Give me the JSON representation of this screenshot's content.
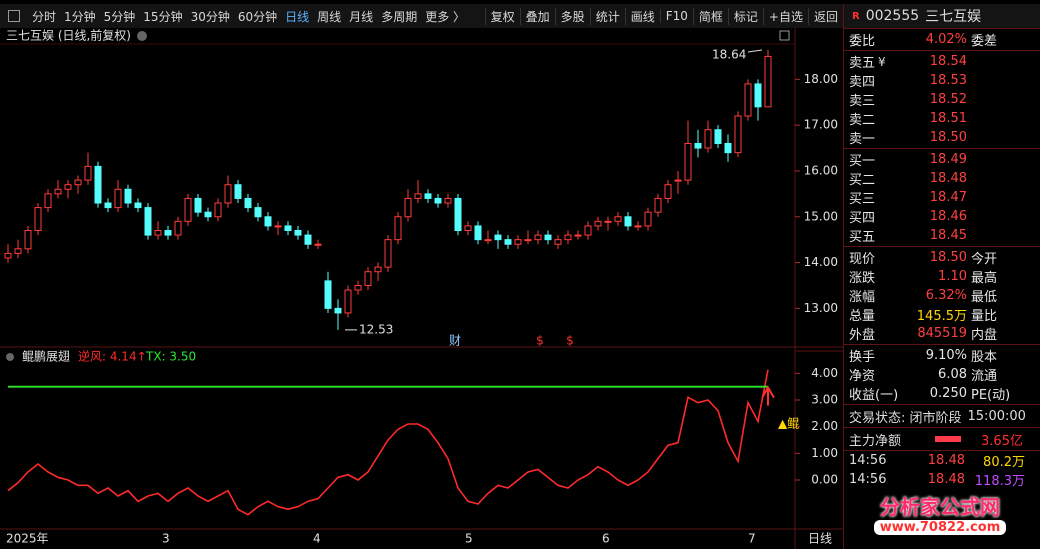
{
  "toolbar": {
    "periods": [
      "分时",
      "1分钟",
      "5分钟",
      "15分钟",
      "30分钟",
      "60分钟",
      "日线",
      "周线",
      "月线",
      "多周期",
      "更多 〉"
    ],
    "selected": 6,
    "tools": [
      "复权",
      "叠加",
      "多股",
      "统计",
      "画线",
      "F10",
      "简框",
      "标记",
      "+自选",
      "返回"
    ]
  },
  "chart_data": [
    {
      "type": "candlestick",
      "title": "三七互娱 (日线,前复权)",
      "up_color": "#ff3c3c",
      "down_color": "#54fcfc",
      "ylim": [
        12.2,
        18.75
      ],
      "yticks": [
        {
          "value": 13,
          "label": "13.00"
        },
        {
          "value": 14,
          "label": "14.00"
        },
        {
          "value": 15,
          "label": "15.00"
        },
        {
          "value": 16,
          "label": "16.00"
        },
        {
          "value": 17,
          "label": "17.00"
        },
        {
          "value": 18,
          "label": "18.00"
        }
      ],
      "x_labels": [
        "2025年",
        "3",
        "4",
        "5",
        "6",
        "7"
      ],
      "period_label": "日线",
      "annotations": [
        18.64,
        12.53
      ],
      "markers": [
        "财",
        "$",
        "$"
      ],
      "ohlc": [
        [
          14.1,
          14.4,
          14.0,
          14.2
        ],
        [
          14.2,
          14.5,
          14.1,
          14.3
        ],
        [
          14.3,
          14.8,
          14.2,
          14.7
        ],
        [
          14.7,
          15.3,
          14.6,
          15.2
        ],
        [
          15.2,
          15.6,
          15.1,
          15.5
        ],
        [
          15.5,
          15.8,
          15.4,
          15.6
        ],
        [
          15.6,
          15.8,
          15.4,
          15.7
        ],
        [
          15.7,
          15.9,
          15.5,
          15.8
        ],
        [
          15.8,
          16.4,
          15.7,
          16.1
        ],
        [
          16.1,
          16.2,
          15.2,
          15.3
        ],
        [
          15.3,
          15.4,
          15.1,
          15.2
        ],
        [
          15.2,
          15.8,
          15.1,
          15.6
        ],
        [
          15.6,
          15.7,
          15.2,
          15.3
        ],
        [
          15.3,
          15.4,
          15.1,
          15.2
        ],
        [
          15.2,
          15.3,
          14.5,
          14.6
        ],
        [
          14.6,
          14.9,
          14.5,
          14.7
        ],
        [
          14.7,
          14.8,
          14.5,
          14.6
        ],
        [
          14.6,
          15.0,
          14.5,
          14.9
        ],
        [
          14.9,
          15.5,
          14.8,
          15.4
        ],
        [
          15.4,
          15.5,
          15.0,
          15.1
        ],
        [
          15.1,
          15.2,
          14.9,
          15.0
        ],
        [
          15.0,
          15.4,
          14.9,
          15.3
        ],
        [
          15.3,
          15.9,
          15.2,
          15.7
        ],
        [
          15.7,
          15.8,
          15.3,
          15.4
        ],
        [
          15.4,
          15.5,
          15.1,
          15.2
        ],
        [
          15.2,
          15.3,
          14.9,
          15.0
        ],
        [
          15.0,
          15.1,
          14.7,
          14.8
        ],
        [
          14.8,
          14.9,
          14.6,
          14.8
        ],
        [
          14.8,
          14.9,
          14.6,
          14.7
        ],
        [
          14.7,
          14.8,
          14.5,
          14.6
        ],
        [
          14.6,
          14.7,
          14.3,
          14.4
        ],
        [
          14.4,
          14.5,
          14.3,
          14.4
        ],
        [
          13.6,
          13.8,
          12.9,
          13.0
        ],
        [
          13.0,
          13.2,
          12.53,
          12.9
        ],
        [
          12.9,
          13.5,
          12.8,
          13.4
        ],
        [
          13.4,
          13.6,
          13.3,
          13.5
        ],
        [
          13.5,
          13.9,
          13.4,
          13.8
        ],
        [
          13.8,
          14.0,
          13.6,
          13.9
        ],
        [
          13.9,
          14.6,
          13.8,
          14.5
        ],
        [
          14.5,
          15.1,
          14.4,
          15.0
        ],
        [
          15.0,
          15.6,
          14.9,
          15.4
        ],
        [
          15.4,
          15.8,
          15.3,
          15.5
        ],
        [
          15.5,
          15.6,
          15.3,
          15.4
        ],
        [
          15.4,
          15.5,
          15.2,
          15.3
        ],
        [
          15.3,
          15.5,
          15.2,
          15.4
        ],
        [
          15.4,
          15.5,
          14.6,
          14.7
        ],
        [
          14.7,
          14.9,
          14.6,
          14.8
        ],
        [
          14.8,
          14.9,
          14.4,
          14.5
        ],
        [
          14.5,
          14.7,
          14.4,
          14.5
        ],
        [
          14.6,
          14.7,
          14.3,
          14.5
        ],
        [
          14.5,
          14.6,
          14.3,
          14.4
        ],
        [
          14.4,
          14.6,
          14.3,
          14.5
        ],
        [
          14.5,
          14.7,
          14.4,
          14.5
        ],
        [
          14.5,
          14.7,
          14.4,
          14.6
        ],
        [
          14.6,
          14.7,
          14.4,
          14.5
        ],
        [
          14.4,
          14.6,
          14.3,
          14.5
        ],
        [
          14.5,
          14.7,
          14.4,
          14.6
        ],
        [
          14.6,
          14.7,
          14.5,
          14.6
        ],
        [
          14.6,
          14.9,
          14.5,
          14.8
        ],
        [
          14.8,
          15.0,
          14.7,
          14.9
        ],
        [
          14.9,
          15.0,
          14.7,
          14.9
        ],
        [
          14.9,
          15.1,
          14.8,
          15.0
        ],
        [
          15.0,
          15.1,
          14.7,
          14.8
        ],
        [
          14.8,
          14.9,
          14.7,
          14.8
        ],
        [
          14.8,
          15.2,
          14.7,
          15.1
        ],
        [
          15.1,
          15.5,
          15.0,
          15.4
        ],
        [
          15.4,
          15.8,
          15.3,
          15.7
        ],
        [
          15.8,
          16.0,
          15.5,
          15.8
        ],
        [
          15.8,
          17.1,
          15.7,
          16.6
        ],
        [
          16.6,
          16.9,
          16.3,
          16.5
        ],
        [
          16.5,
          17.1,
          16.4,
          16.9
        ],
        [
          16.9,
          17.0,
          16.5,
          16.6
        ],
        [
          16.6,
          16.8,
          16.2,
          16.4
        ],
        [
          16.4,
          17.3,
          16.3,
          17.2
        ],
        [
          17.2,
          18.0,
          17.1,
          17.9
        ],
        [
          17.9,
          18.0,
          17.1,
          17.4
        ],
        [
          17.4,
          18.64,
          17.4,
          18.5
        ]
      ]
    },
    {
      "type": "line",
      "title": "鲲鹏展翅",
      "signal": "▲鲲",
      "ylim": [
        -1.8,
        4.8
      ],
      "yticks": [
        {
          "value": 0,
          "label": "0.00"
        },
        {
          "value": 1,
          "label": "1.00"
        },
        {
          "value": 2,
          "label": "2.00"
        },
        {
          "value": 3,
          "label": "3.00"
        },
        {
          "value": 4,
          "label": "4.00"
        }
      ],
      "series": [
        {
          "name": "逆风: 4.14↑",
          "color": "#ff2a2a",
          "values": [
            -0.4,
            -0.1,
            0.3,
            0.6,
            0.3,
            0.1,
            0.0,
            -0.2,
            -0.2,
            -0.5,
            -0.3,
            -0.6,
            -0.4,
            -0.8,
            -0.6,
            -0.5,
            -0.8,
            -0.5,
            -0.3,
            -0.6,
            -0.8,
            -0.6,
            -0.4,
            -1.1,
            -1.3,
            -1.0,
            -0.8,
            -1.0,
            -1.1,
            -1.0,
            -0.8,
            -0.7,
            -0.3,
            0.1,
            0.2,
            0.0,
            0.3,
            0.9,
            1.5,
            1.9,
            2.1,
            2.1,
            1.9,
            1.4,
            0.8,
            -0.3,
            -0.8,
            -0.9,
            -0.5,
            -0.2,
            -0.3,
            0.0,
            0.3,
            0.4,
            0.1,
            -0.2,
            -0.3,
            0.0,
            0.2,
            0.5,
            0.3,
            0.0,
            -0.2,
            0.0,
            0.3,
            0.8,
            1.3,
            1.4,
            3.1,
            2.9,
            3.0,
            2.6,
            1.4,
            0.7,
            2.9,
            2.2,
            4.14
          ]
        },
        {
          "name": "TX: 3.50",
          "color": "#2ee82e",
          "values": [
            3.5,
            3.5,
            3.5,
            3.5,
            3.5,
            3.5,
            3.5,
            3.5,
            3.5,
            3.5,
            3.5,
            3.5,
            3.5,
            3.5,
            3.5,
            3.5,
            3.5,
            3.5,
            3.5,
            3.5,
            3.5,
            3.5,
            3.5,
            3.5,
            3.5,
            3.5,
            3.5,
            3.5,
            3.5,
            3.5,
            3.5,
            3.5,
            3.5,
            3.5,
            3.5,
            3.5,
            3.5,
            3.5,
            3.5,
            3.5,
            3.5,
            3.5,
            3.5,
            3.5,
            3.5,
            3.5,
            3.5,
            3.5,
            3.5,
            3.5,
            3.5,
            3.5,
            3.5,
            3.5,
            3.5,
            3.5,
            3.5,
            3.5,
            3.5,
            3.5,
            3.5,
            3.5,
            3.5,
            3.5,
            3.5,
            3.5,
            3.5,
            3.5,
            3.5,
            3.5,
            3.5,
            3.5,
            3.5,
            3.5,
            3.5,
            3.5,
            3.5
          ]
        }
      ]
    }
  ],
  "quote": {
    "badge": "R",
    "code": "002555",
    "name": "三七互娱",
    "weibi": {
      "label": "委比",
      "value": "4.02%",
      "label2": "委差",
      "color": "#ff4040"
    },
    "sections": [
      [
        {
          "label": "卖五",
          "icon": "¥",
          "value": "18.54",
          "color": "#ff4040"
        },
        {
          "label": "卖四",
          "value": "18.53",
          "color": "#ff4040"
        },
        {
          "label": "卖三",
          "value": "18.52",
          "color": "#ff4040"
        },
        {
          "label": "卖二",
          "value": "18.51",
          "color": "#ff4040"
        },
        {
          "label": "卖一",
          "value": "18.50",
          "color": "#ff4040"
        }
      ],
      [
        {
          "label": "买一",
          "value": "18.49",
          "color": "#ff4040"
        },
        {
          "label": "买二",
          "value": "18.48",
          "color": "#ff4040"
        },
        {
          "label": "买三",
          "value": "18.47",
          "color": "#ff4040"
        },
        {
          "label": "买四",
          "value": "18.46",
          "color": "#ff4040"
        },
        {
          "label": "买五",
          "value": "18.45",
          "color": "#ff4040"
        }
      ],
      [
        {
          "label": "现价",
          "value": "18.50",
          "label2": "今开",
          "color": "#ff4040"
        },
        {
          "label": "涨跌",
          "value": "1.10",
          "label2": "最高",
          "color": "#ff4040"
        },
        {
          "label": "涨幅",
          "value": "6.32%",
          "label2": "最低",
          "color": "#ff4040"
        },
        {
          "label": "总量",
          "value": "145.5万",
          "label2": "量比",
          "color": "#ffd800"
        },
        {
          "label": "外盘",
          "value": "845519",
          "label2": "内盘",
          "color": "#ff4040"
        }
      ],
      [
        {
          "label": "换手",
          "value": "9.10%",
          "label2": "股本",
          "color": "#e6e6e6"
        },
        {
          "label": "净资",
          "value": "6.08",
          "label2": "流通",
          "color": "#e6e6e6"
        },
        {
          "label": "收益(一)",
          "value": "0.250",
          "label2": "PE(动)",
          "color": "#e6e6e6"
        }
      ]
    ],
    "status": {
      "label": "交易状态: 闭市阶段",
      "time": "15:00:00"
    },
    "main_net": {
      "label": "主力净额",
      "value": "3.65亿"
    },
    "ticks": [
      {
        "time": "14:56",
        "price": "18.48",
        "volume": "80.2万",
        "color": "#ffd800"
      },
      {
        "time": "14:56",
        "price": "18.48",
        "volume": "118.3万",
        "color": "#c04cff"
      }
    ]
  },
  "watermark": {
    "brand": "分析家公式网",
    "url": "www.70822.com"
  }
}
